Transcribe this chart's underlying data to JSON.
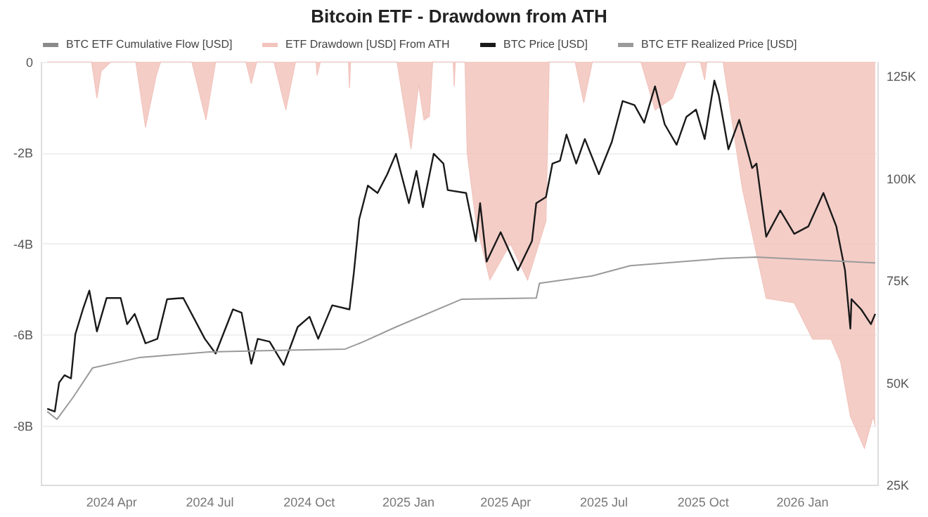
{
  "chart_data": {
    "type": "area",
    "title": "Bitcoin ETF - Drawdown from ATH",
    "xlim": [
      "2024-01-27",
      "2026-03-12"
    ],
    "xticks": [
      {
        "value": "2024-04-01",
        "label": "2024 Apr"
      },
      {
        "value": "2024-07-01",
        "label": "2024 Jul"
      },
      {
        "value": "2024-10-01",
        "label": "2024 Oct"
      },
      {
        "value": "2025-01-01",
        "label": "2025 Jan"
      },
      {
        "value": "2025-04-01",
        "label": "2025 Apr"
      },
      {
        "value": "2025-07-01",
        "label": "2025 Jul"
      },
      {
        "value": "2025-10-01",
        "label": "2025 Oct"
      },
      {
        "value": "2026-01-01",
        "label": "2026 Jan"
      }
    ],
    "ylim": [
      -9.3,
      0
    ],
    "yticks": [
      0,
      {
        "value": -2,
        "label": "-2B"
      },
      {
        "value": -4,
        "label": "-4B"
      },
      {
        "value": -6,
        "label": "-6B"
      },
      {
        "value": -8,
        "label": "-8B"
      }
    ],
    "y2lim": [
      25,
      128.5
    ],
    "y2ticks": [
      {
        "value": 25,
        "label": "25K"
      },
      {
        "value": 50,
        "label": "50K"
      },
      {
        "value": 75,
        "label": "75K"
      },
      {
        "value": 100,
        "label": "100K"
      },
      {
        "value": 125,
        "label": "125K"
      }
    ],
    "grid": "y",
    "legend": "top",
    "series": [
      {
        "name": "BTC ETF Cumulative Flow [USD]",
        "type": "line",
        "axis": "y",
        "color": "#8a8a8a"
      },
      {
        "name": "ETF Drawdown [USD] From ATH",
        "axis": "y",
        "color": "#f2c4bd",
        "x": [
          "2024-02-02",
          "2024-03-14",
          "2024-03-19",
          "2024-03-23",
          "2024-04-01",
          "2024-04-24",
          "2024-05-03",
          "2024-05-13",
          "2024-05-17",
          "2024-06-15",
          "2024-06-28",
          "2024-07-07",
          "2024-08-04",
          "2024-08-09",
          "2024-08-14",
          "2024-08-30",
          "2024-09-10",
          "2024-09-19",
          "2024-10-08",
          "2024-10-09",
          "2024-10-12",
          "2024-11-07",
          "2024-11-08",
          "2024-11-09",
          "2024-12-22",
          "2025-01-04",
          "2025-01-11",
          "2025-01-16",
          "2025-01-21",
          "2025-01-24",
          "2025-02-12",
          "2025-02-13",
          "2025-02-14",
          "2025-02-23",
          "2025-02-25",
          "2025-03-05",
          "2025-03-18",
          "2025-04-06",
          "2025-04-22",
          "2025-05-09",
          "2025-05-12",
          "2025-06-05",
          "2025-06-13",
          "2025-06-21",
          "2025-08-05",
          "2025-08-18",
          "2025-09-03",
          "2025-09-16",
          "2025-09-29",
          "2025-10-03",
          "2025-10-05",
          "2025-10-20",
          "2025-11-07",
          "2025-11-29",
          "2025-12-25",
          "2026-01-11",
          "2026-01-28",
          "2026-02-06",
          "2026-02-15",
          "2026-02-28",
          "2026-03-08",
          "2026-03-10"
        ],
        "values": [
          0,
          0,
          -0.8,
          -0.2,
          0,
          0,
          -1.44,
          -0.3,
          0,
          0,
          -1.28,
          0,
          0,
          -0.48,
          0,
          0,
          -1.06,
          0,
          0,
          -0.3,
          0,
          0,
          -0.58,
          0,
          0,
          -1.92,
          -0.5,
          -1.28,
          -1.2,
          0,
          0,
          -0.54,
          0,
          0,
          -2.0,
          -3.5,
          -4.8,
          -4.0,
          -4.8,
          -3.5,
          0,
          0,
          -0.9,
          0,
          0,
          -1.06,
          -0.8,
          0,
          0,
          -0.4,
          0,
          0,
          -2.8,
          -5.2,
          -5.3,
          -6.1,
          -6.1,
          -6.6,
          -7.8,
          -8.5,
          -7.8,
          -8.0
        ]
      },
      {
        "name": "BTC Price [USD]",
        "type": "line",
        "axis": "y2",
        "color": "#1a1a1a",
        "x": [
          "2024-02-02",
          "2024-02-09",
          "2024-02-13",
          "2024-02-18",
          "2024-02-24",
          "2024-02-28",
          "2024-03-06",
          "2024-03-12",
          "2024-03-19",
          "2024-03-28",
          "2024-04-10",
          "2024-04-16",
          "2024-04-23",
          "2024-05-03",
          "2024-05-14",
          "2024-05-23",
          "2024-06-07",
          "2024-06-27",
          "2024-07-07",
          "2024-07-23",
          "2024-07-31",
          "2024-08-09",
          "2024-08-15",
          "2024-08-26",
          "2024-09-08",
          "2024-09-21",
          "2024-10-02",
          "2024-10-10",
          "2024-10-23",
          "2024-11-08",
          "2024-11-12",
          "2024-11-17",
          "2024-11-25",
          "2024-12-04",
          "2024-12-13",
          "2024-12-21",
          "2025-01-02",
          "2025-01-09",
          "2025-01-15",
          "2025-01-25",
          "2025-02-03",
          "2025-02-07",
          "2025-02-24",
          "2025-03-05",
          "2025-03-09",
          "2025-03-15",
          "2025-03-28",
          "2025-04-13",
          "2025-04-26",
          "2025-04-30",
          "2025-05-09",
          "2025-05-15",
          "2025-05-22",
          "2025-05-28",
          "2025-06-06",
          "2025-06-14",
          "2025-06-27",
          "2025-07-09",
          "2025-07-19",
          "2025-07-30",
          "2025-08-08",
          "2025-08-18",
          "2025-08-27",
          "2025-09-07",
          "2025-09-16",
          "2025-09-25",
          "2025-10-03",
          "2025-10-12",
          "2025-10-16",
          "2025-10-25",
          "2025-11-04",
          "2025-11-16",
          "2025-11-20",
          "2025-11-29",
          "2025-12-12",
          "2025-12-25",
          "2026-01-07",
          "2026-01-21",
          "2026-02-02",
          "2026-02-10",
          "2026-02-15",
          "2026-02-16",
          "2026-02-25",
          "2026-03-06",
          "2026-03-10"
        ],
        "values": [
          43.6,
          42.9,
          50,
          51.8,
          51,
          61.8,
          67.9,
          72.5,
          62.5,
          70.7,
          70.7,
          64.3,
          66.8,
          59.6,
          60.7,
          70.4,
          70.7,
          60.7,
          57.1,
          67.9,
          67.1,
          54.6,
          60.7,
          60,
          54.3,
          63.6,
          66.1,
          60.7,
          68.9,
          67.9,
          76.8,
          90,
          98.2,
          96.4,
          101,
          106,
          93.9,
          101.8,
          92.9,
          106,
          103.6,
          97.1,
          96.4,
          84.6,
          93.9,
          79.6,
          86.8,
          77.5,
          84.6,
          93.9,
          95.4,
          103.6,
          104.3,
          110.7,
          103.6,
          109.6,
          101,
          108.9,
          118.9,
          117.9,
          113.6,
          122.5,
          113.2,
          108.2,
          115,
          116.8,
          109.6,
          123.9,
          120.4,
          107.1,
          114.3,
          102.5,
          103.6,
          85.7,
          92.1,
          86.4,
          88.2,
          96.4,
          88.2,
          77.5,
          63.2,
          70.4,
          67.9,
          64.3,
          66.8
        ]
      },
      {
        "name": "BTC ETF Realized Price [USD]",
        "type": "line",
        "axis": "y2",
        "color": "#9a9a9a",
        "x": [
          "2024-02-02",
          "2024-02-11",
          "2024-02-26",
          "2024-03-15",
          "2024-04-27",
          "2024-07-01",
          "2024-09-04",
          "2024-11-04",
          "2024-11-21",
          "2024-12-21",
          "2025-02-20",
          "2025-04-30",
          "2025-05-03",
          "2025-06-21",
          "2025-07-26",
          "2025-10-21",
          "2025-11-20",
          "2026-03-10"
        ],
        "values": [
          42.9,
          41,
          46.4,
          53.6,
          56.1,
          57.5,
          57.9,
          58.2,
          60,
          63.6,
          70.4,
          70.7,
          74.3,
          76.1,
          78.6,
          80.4,
          80.7,
          79.3
        ]
      }
    ]
  }
}
